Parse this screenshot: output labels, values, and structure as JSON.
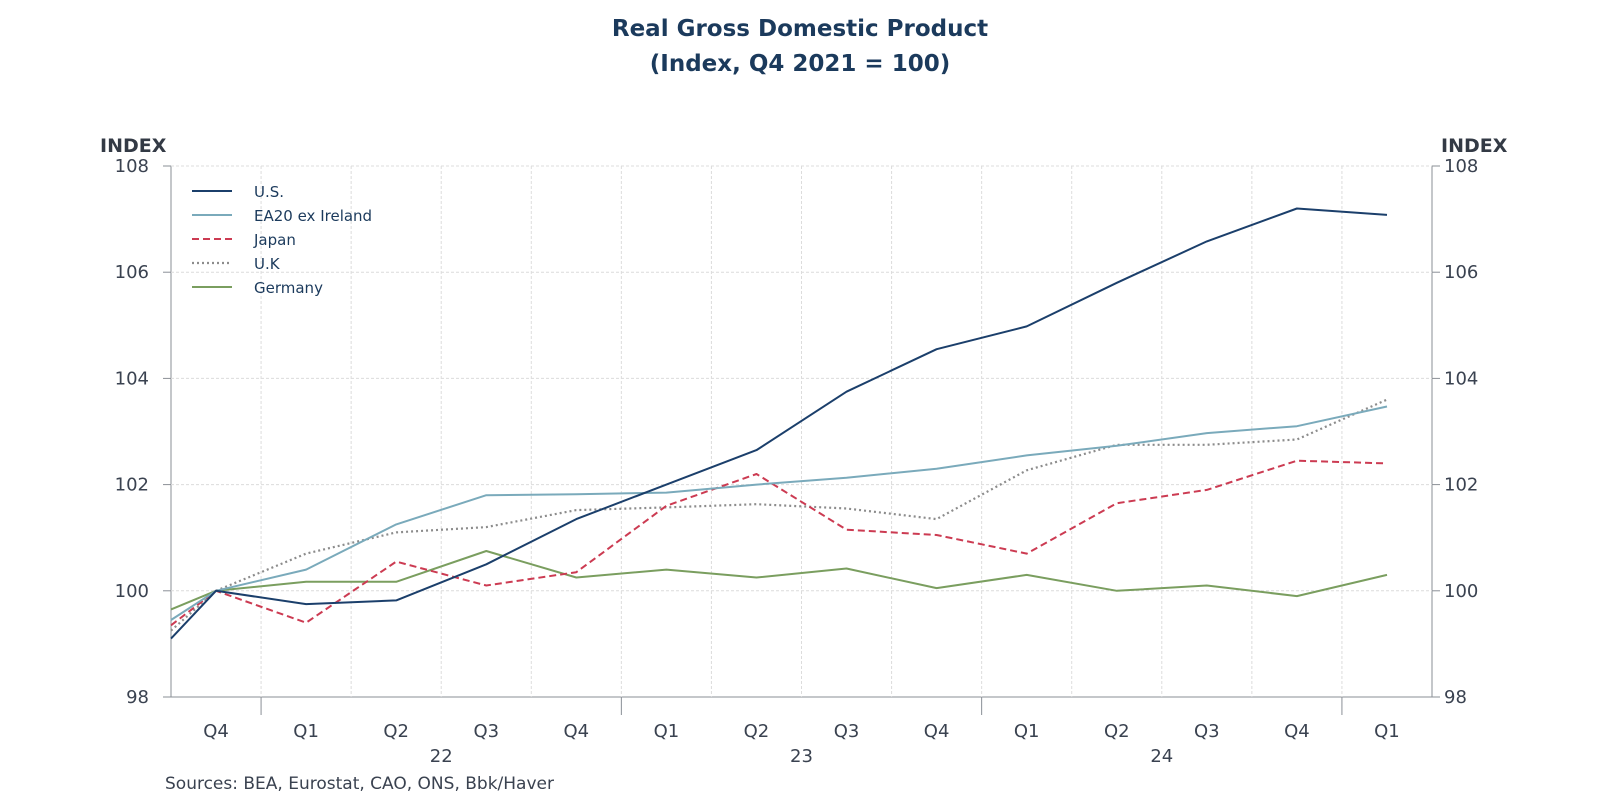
{
  "chart_data": {
    "type": "line",
    "title": "Real Gross Domestic Product",
    "subtitle": "(Index, Q4 2021 = 100)",
    "ylabel_left": "INDEX",
    "ylabel_right": "INDEX",
    "ylim": [
      98,
      108
    ],
    "yticks": [
      98,
      100,
      102,
      104,
      106,
      108
    ],
    "x": [
      -0.5,
      0,
      1,
      2,
      3,
      4,
      5,
      6,
      7,
      8,
      9,
      10,
      11,
      12,
      13
    ],
    "xlim": [
      -0.5,
      13.5
    ],
    "categories": [
      "Q4",
      "Q1",
      "Q2",
      "Q3",
      "Q4",
      "Q1",
      "Q2",
      "Q3",
      "Q4",
      "Q1",
      "Q2",
      "Q3",
      "Q4",
      "Q1"
    ],
    "years": [
      "22",
      "23",
      "24"
    ],
    "series": [
      {
        "name": "U.S.",
        "color": "#1b3f6b",
        "dash": "solid",
        "values": [
          99.1,
          100.0,
          99.75,
          99.82,
          100.5,
          101.35,
          102.0,
          102.65,
          103.75,
          104.55,
          104.98,
          105.8,
          106.58,
          107.2,
          107.08
        ]
      },
      {
        "name": "EA20 ex Ireland",
        "color": "#7aaabb",
        "dash": "solid",
        "values": [
          99.45,
          100.0,
          100.4,
          101.25,
          101.8,
          101.82,
          101.85,
          102.0,
          102.13,
          102.3,
          102.55,
          102.73,
          102.97,
          103.1,
          103.47
        ]
      },
      {
        "name": "Japan",
        "color": "#cc3b52",
        "dash": "dashed",
        "values": [
          99.35,
          100.0,
          99.4,
          100.55,
          100.1,
          100.35,
          101.6,
          102.2,
          101.15,
          101.05,
          100.7,
          101.65,
          101.9,
          102.45,
          102.4
        ]
      },
      {
        "name": "U.K",
        "color": "#8c8c8c",
        "dash": "dotted",
        "values": [
          99.25,
          100.0,
          100.7,
          101.1,
          101.2,
          101.52,
          101.57,
          101.63,
          101.55,
          101.35,
          102.27,
          102.75,
          102.75,
          102.85,
          103.6
        ]
      },
      {
        "name": "Germany",
        "color": "#7a9e5f",
        "dash": "solid",
        "values": [
          99.65,
          100.0,
          100.17,
          100.17,
          100.75,
          100.25,
          100.4,
          100.25,
          100.42,
          100.05,
          100.3,
          100.0,
          100.1,
          99.9,
          100.3
        ]
      }
    ],
    "legend_position": "top-left",
    "grid": true,
    "source": "Sources:  BEA, Eurostat, CAO, ONS, Bbk/Haver"
  }
}
